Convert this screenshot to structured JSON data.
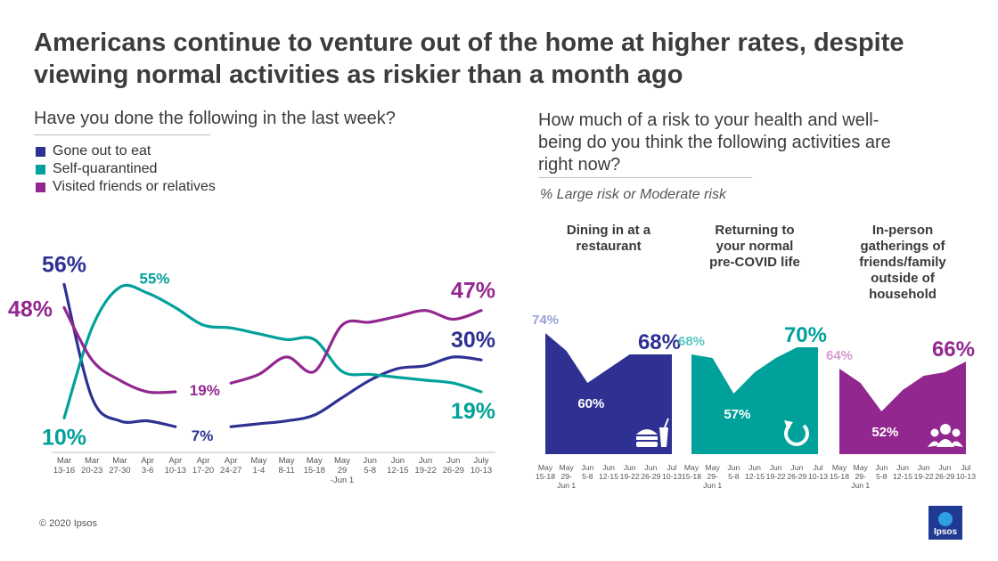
{
  "title": "Americans continue to venture out of the home at higher rates, despite viewing normal activities as riskier than a month ago",
  "left_question": "Have you done the following in the last week?",
  "right_question": "How much of a risk to your health and well-being do you think the following activities are right now?",
  "right_note": "% Large risk or Moderate risk",
  "copyright": "© 2020 Ipsos",
  "logo_text": "Ipsos",
  "colors": {
    "eat": "#2e3192",
    "quarantine": "#00a19a",
    "visit": "#92278f",
    "eat_light": "#9aa0d8",
    "quarantine_light": "#5cc8c2",
    "visit_light": "#d49bd2"
  },
  "chart_data": [
    {
      "type": "line",
      "categories": [
        "Mar 13-16",
        "Mar 20-23",
        "Mar 27-30",
        "Apr 3-6",
        "Apr 10-13",
        "Apr 17-20",
        "Apr 24-27",
        "May 1-4",
        "May 8-11",
        "May 15-18",
        "May 29 -Jun 1",
        "Jun 5-8",
        "Jun 12-15",
        "Jun 19-22",
        "Jun 26-29",
        "July 10-13"
      ],
      "tick_labels": [
        [
          "Mar",
          "13-16"
        ],
        [
          "Mar",
          "20-23"
        ],
        [
          "Mar",
          "27-30"
        ],
        [
          "Apr",
          "3-6"
        ],
        [
          "Apr",
          "10-13"
        ],
        [
          "Apr",
          "17-20"
        ],
        [
          "Apr",
          "24-27"
        ],
        [
          "May",
          "1-4"
        ],
        [
          "May",
          "8-11"
        ],
        [
          "May",
          "15-18"
        ],
        [
          "May",
          "29",
          "-Jun 1"
        ],
        [
          "Jun",
          "5-8"
        ],
        [
          "Jun",
          "12-15"
        ],
        [
          "Jun",
          "19-22"
        ],
        [
          "Jun",
          "26-29"
        ],
        [
          "July",
          "10-13"
        ]
      ],
      "series": [
        {
          "name": "Gone out to eat",
          "color_key": "eat",
          "values": [
            56,
            17,
            9,
            9,
            7,
            null,
            7,
            8,
            9,
            11,
            17,
            23,
            27,
            28,
            31,
            30
          ],
          "labels": [
            {
              "i": 0,
              "text": "56%"
            },
            {
              "i": 4,
              "text": "7%"
            },
            {
              "i": 15,
              "text": "30%"
            }
          ]
        },
        {
          "name": "Self-quarantined",
          "color_key": "quarantine",
          "values": [
            10,
            41,
            55,
            53,
            48,
            42,
            41,
            39,
            37,
            37,
            26,
            25,
            24,
            23,
            22,
            19
          ],
          "labels": [
            {
              "i": 0,
              "text": "10%"
            },
            {
              "i": 2,
              "text": "55%"
            },
            {
              "i": 15,
              "text": "19%"
            }
          ]
        },
        {
          "name": "Visited friends or relatives",
          "color_key": "visit",
          "values": [
            48,
            30,
            23,
            19,
            19,
            null,
            22,
            25,
            31,
            26,
            42,
            43,
            45,
            47,
            44,
            47
          ],
          "labels": [
            {
              "i": 0,
              "text": "48%"
            },
            {
              "i": 4,
              "text": "19%"
            },
            {
              "i": 15,
              "text": "47%"
            }
          ]
        }
      ],
      "ylim": [
        0,
        65
      ]
    },
    {
      "type": "area",
      "title": "Dining in at a restaurant",
      "color_key": "eat",
      "icon": "fast-food-icon",
      "categories": [
        "May 15-18",
        "May 29-Jun 1",
        "Jun 5-8",
        "Jun 12-15",
        "Jun 19-22",
        "Jun 26-29",
        "Jul 10-13"
      ],
      "tick_labels": [
        [
          "May",
          "15-18"
        ],
        [
          "May",
          "29-",
          "Jun 1"
        ],
        [
          "Jun",
          "5-8"
        ],
        [
          "Jun",
          "12-15"
        ],
        [
          "Jun",
          "19-22"
        ],
        [
          "Jun",
          "26-29"
        ],
        [
          "Jul",
          "10-13"
        ]
      ],
      "values": [
        74,
        69,
        60,
        64,
        68,
        68,
        68
      ],
      "labels": [
        {
          "i": 0,
          "text": "74%",
          "style": "light"
        },
        {
          "i": 2,
          "text": "60%",
          "style": "inner"
        },
        {
          "i": 6,
          "text": "68%",
          "style": "dark"
        }
      ],
      "ylim": [
        0,
        80
      ]
    },
    {
      "type": "area",
      "title": "Returning to your normal pre-COVID life",
      "color_key": "quarantine",
      "icon": "refresh-icon",
      "categories": [
        "May 15-18",
        "May 29-Jun 1",
        "Jun 5-8",
        "Jun 12-15",
        "Jun 19-22",
        "Jun 26-29",
        "Jul 10-13"
      ],
      "tick_labels": [
        [
          "May",
          "15-18"
        ],
        [
          "May",
          "29-",
          "Jun 1"
        ],
        [
          "Jun",
          "5-8"
        ],
        [
          "Jun",
          "12-15"
        ],
        [
          "Jun",
          "19-22"
        ],
        [
          "Jun",
          "26-29"
        ],
        [
          "Jul",
          "10-13"
        ]
      ],
      "values": [
        68,
        67,
        57,
        63,
        67,
        70,
        70
      ],
      "labels": [
        {
          "i": 0,
          "text": "68%",
          "style": "light"
        },
        {
          "i": 2,
          "text": "57%",
          "style": "inner"
        },
        {
          "i": 6,
          "text": "70%",
          "style": "dark"
        }
      ],
      "ylim": [
        0,
        80
      ]
    },
    {
      "type": "area",
      "title": "In-person gatherings of friends/family outside of household",
      "color_key": "visit",
      "icon": "group-icon",
      "categories": [
        "May 15-18",
        "May 29-Jun 1",
        "Jun 5-8",
        "Jun 12-15",
        "Jun 19-22",
        "Jun 26-29",
        "Jul 10-13"
      ],
      "tick_labels": [
        [
          "May",
          "15-18"
        ],
        [
          "May",
          "29-",
          "Jun 1"
        ],
        [
          "Jun",
          "5-8"
        ],
        [
          "Jun",
          "12-15"
        ],
        [
          "Jun",
          "19-22"
        ],
        [
          "Jun",
          "26-29"
        ],
        [
          "Jul",
          "10-13"
        ]
      ],
      "values": [
        64,
        60,
        52,
        58,
        62,
        63,
        66
      ],
      "labels": [
        {
          "i": 0,
          "text": "64%",
          "style": "light"
        },
        {
          "i": 2,
          "text": "52%",
          "style": "inner"
        },
        {
          "i": 6,
          "text": "66%",
          "style": "dark"
        }
      ],
      "ylim": [
        0,
        80
      ]
    }
  ]
}
